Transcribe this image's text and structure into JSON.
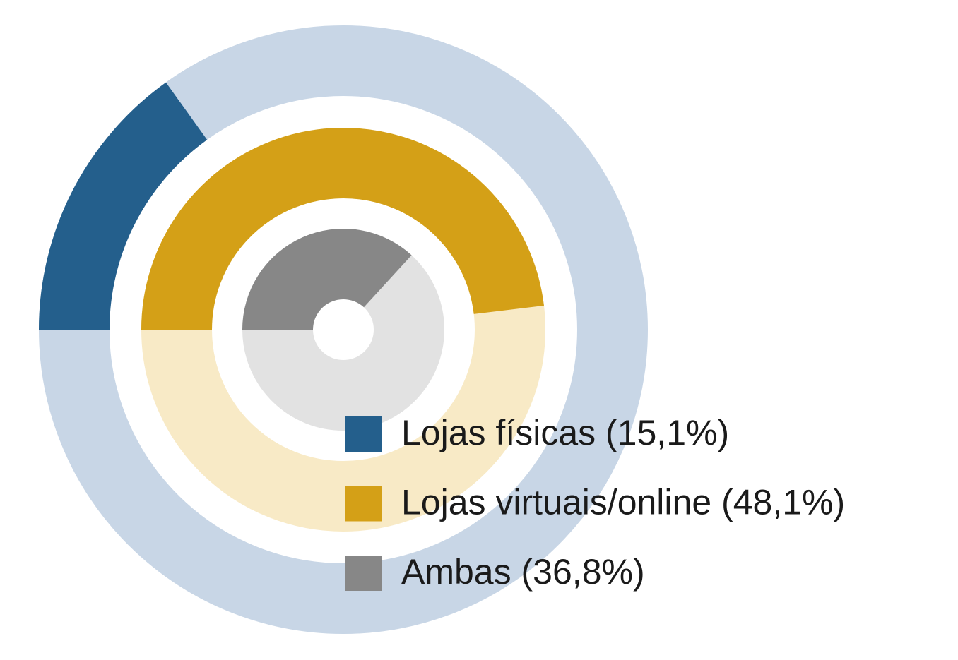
{
  "chart_data": {
    "type": "radial_bar",
    "categories": [
      "Lojas físicas",
      "Lojas virtuais/online",
      "Ambas"
    ],
    "values": [
      15.1,
      48.1,
      36.8
    ],
    "value_labels": [
      "(15,1%)",
      "(48,1%)",
      "(36,8%)"
    ],
    "colors": [
      "#245f8c",
      "#d4a017",
      "#878787"
    ],
    "track_colors": [
      "#c8d6e6",
      "#f8eac6",
      "#e2e2e2"
    ],
    "legend": "bottom-right"
  }
}
